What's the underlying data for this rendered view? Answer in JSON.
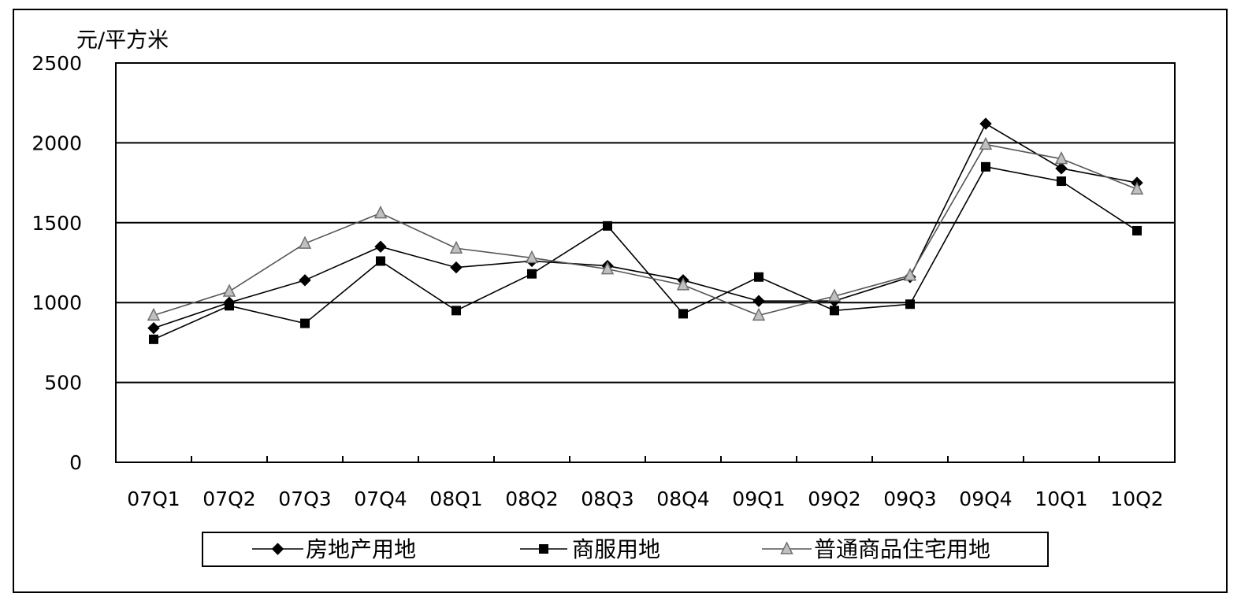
{
  "chart_data": {
    "type": "line",
    "unit": "元/平方米",
    "categories": [
      "07Q1",
      "07Q2",
      "07Q3",
      "07Q4",
      "08Q1",
      "08Q2",
      "08Q3",
      "08Q4",
      "09Q1",
      "09Q2",
      "09Q3",
      "09Q4",
      "10Q1",
      "10Q2"
    ],
    "ylim": [
      0,
      2500
    ],
    "yticks": [
      0,
      500,
      1000,
      1500,
      2000,
      2500
    ],
    "grid": true,
    "legend_position": "bottom",
    "series": [
      {
        "name": "房地产用地",
        "marker": "diamond",
        "color": "#000000",
        "values": [
          840,
          1000,
          1140,
          1350,
          1220,
          1260,
          1230,
          1140,
          1010,
          1010,
          1160,
          2120,
          1840,
          1750
        ]
      },
      {
        "name": "商服用地",
        "marker": "square",
        "color": "#000000",
        "values": [
          770,
          980,
          870,
          1260,
          950,
          1180,
          1480,
          930,
          1160,
          950,
          990,
          1850,
          1760,
          1450
        ]
      },
      {
        "name": "普通商品住宅用地",
        "marker": "triangle",
        "color": "#a0a0a0",
        "values": [
          920,
          1070,
          1370,
          1560,
          1340,
          1280,
          1210,
          1110,
          920,
          1040,
          1170,
          1990,
          1900,
          1710
        ]
      }
    ]
  }
}
